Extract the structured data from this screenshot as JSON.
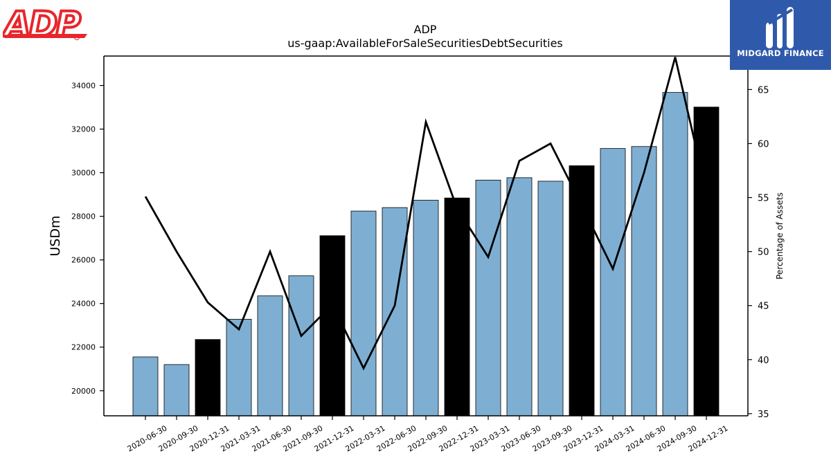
{
  "branding": {
    "left_logo_text": "ADP",
    "right_logo_text": "MIDGARD FINANCE"
  },
  "colors": {
    "bar_default": "#7eafd3",
    "bar_highlight": "#000000",
    "line": "#000000",
    "adp_red": "#e8262b",
    "midgard_blue": "#2f5aab"
  },
  "chart_data": {
    "type": "bar",
    "title": "ADP",
    "subtitle": "us-gaap:AvailableForSaleSecuritiesDebtSecurities",
    "ylabel": "USDm",
    "y2label": "Percentage of Assets",
    "ylim": [
      18850,
      35350
    ],
    "y2lim": [
      34.8,
      68.1
    ],
    "yticks": [
      20000,
      22000,
      24000,
      26000,
      28000,
      30000,
      32000,
      34000
    ],
    "y2ticks": [
      35,
      40,
      45,
      50,
      55,
      60,
      65
    ],
    "categories": [
      "2020-06-30",
      "2020-09-30",
      "2020-12-31",
      "2021-03-31",
      "2021-06-30",
      "2021-09-30",
      "2021-12-31",
      "2022-03-31",
      "2022-06-30",
      "2022-09-30",
      "2022-12-31",
      "2023-03-31",
      "2023-06-30",
      "2023-09-30",
      "2023-12-31",
      "2024-03-31",
      "2024-06-30",
      "2024-09-30",
      "2024-12-31"
    ],
    "series": [
      {
        "kind": "bar",
        "axis": "left",
        "values": [
          21550,
          21200,
          22350,
          23280,
          24350,
          25270,
          27110,
          28240,
          28400,
          28740,
          28840,
          29660,
          29770,
          29610,
          30320,
          31110,
          31200,
          33680,
          33010
        ],
        "highlight": [
          false,
          false,
          true,
          false,
          false,
          false,
          true,
          false,
          false,
          false,
          true,
          false,
          false,
          false,
          true,
          false,
          false,
          false,
          true
        ]
      },
      {
        "kind": "line",
        "axis": "right",
        "values": [
          55.1,
          50.0,
          45.3,
          42.8,
          50.0,
          42.2,
          45.1,
          39.2,
          45.0,
          62.0,
          54.0,
          49.5,
          58.4,
          60.0,
          54.3,
          48.4,
          57.3,
          68.0,
          55.5
        ]
      }
    ]
  }
}
